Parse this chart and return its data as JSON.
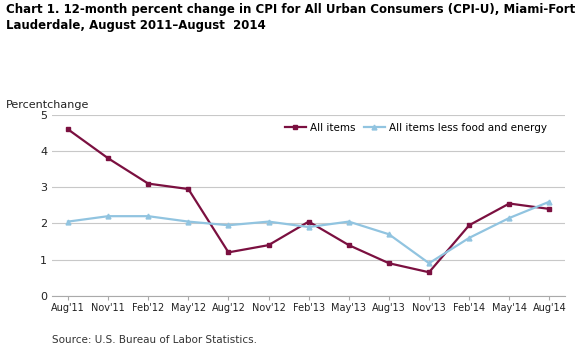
{
  "title": "Chart 1. 12-month percent change in CPI for All Urban Consumers (CPI-U), Miami-Fort\nLauderdale, August 2011–August  2014",
  "ylabel": "Percentchange",
  "source": "Source: U.S. Bureau of Labor Statistics.",
  "x_labels": [
    "Aug'11",
    "Nov'11",
    "Feb'12",
    "May'12",
    "Aug'12",
    "Nov'12",
    "Feb'13",
    "May'13",
    "Aug'13",
    "Nov'13",
    "Feb'14",
    "May'14",
    "Aug'14"
  ],
  "all_items": [
    4.6,
    3.8,
    3.1,
    2.95,
    1.2,
    1.4,
    2.05,
    1.4,
    0.9,
    0.65,
    1.95,
    2.55,
    2.4
  ],
  "all_items_less": [
    2.05,
    2.2,
    2.2,
    2.05,
    1.95,
    2.05,
    1.9,
    2.05,
    1.7,
    0.9,
    1.6,
    2.15,
    2.6
  ],
  "all_items_color": "#7B1040",
  "all_items_less_color": "#91C4E0",
  "ylim": [
    0,
    5
  ],
  "yticks": [
    0,
    1,
    2,
    3,
    4,
    5
  ],
  "background_color": "#ffffff",
  "grid_color": "#c8c8c8"
}
